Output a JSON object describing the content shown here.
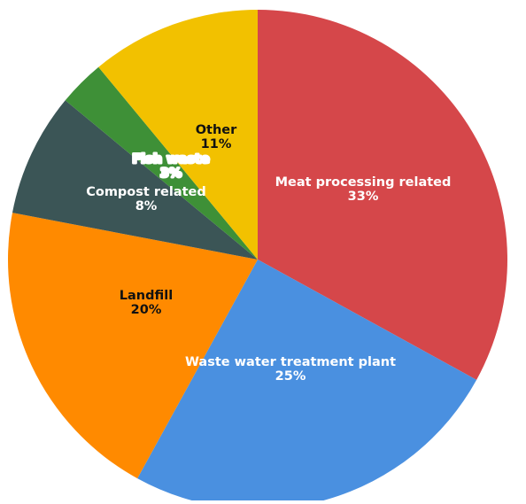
{
  "chart_data": {
    "type": "pie",
    "title": "",
    "slices": [
      {
        "label": "Meat processing related",
        "value": 33,
        "display_value": "33%",
        "color": "#d5474a",
        "text_color": "#ffffff",
        "outline": false
      },
      {
        "label": "Waste water treatment plant",
        "value": 25,
        "display_value": "25%",
        "color": "#4a90e0",
        "text_color": "#ffffff",
        "outline": false
      },
      {
        "label": "Landfill",
        "value": 20,
        "display_value": "20%",
        "color": "#ff8a00",
        "text_color": "#111111",
        "outline": false
      },
      {
        "label": "Compost related",
        "value": 8,
        "display_value": "8%",
        "color": "#3b5556",
        "text_color": "#ffffff",
        "outline": false
      },
      {
        "label": "Fish waste",
        "value": 3,
        "display_value": "3%",
        "color": "#3e9037",
        "text_color": "#ffffff",
        "outline": true
      },
      {
        "label": "Other",
        "value": 11,
        "display_value": "11%",
        "color": "#f2c100",
        "text_color": "#111111",
        "outline": false
      }
    ],
    "start_angle": "12 o'clock",
    "direction": "clockwise"
  }
}
